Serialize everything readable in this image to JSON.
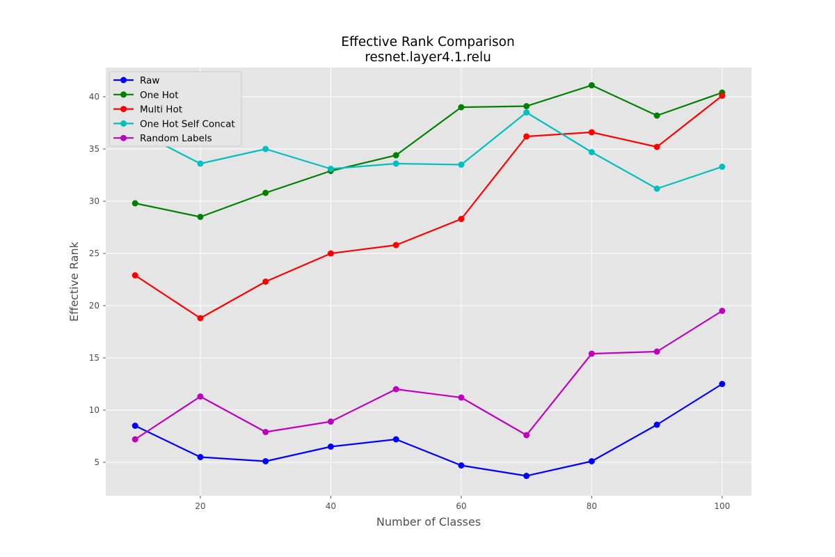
{
  "chart_data": {
    "type": "line",
    "title": "Effective Rank Comparison",
    "subtitle": "resnet.layer4.1.relu",
    "xlabel": "Number of Classes",
    "ylabel": "Effective Rank",
    "xlim": [
      5.5,
      104.5
    ],
    "ylim": [
      1.8,
      42.8
    ],
    "xticks": [
      20,
      40,
      60,
      80,
      100
    ],
    "yticks": [
      5,
      10,
      15,
      20,
      25,
      30,
      35,
      40
    ],
    "grid": true,
    "legend_position": "top-left",
    "x": [
      10,
      20,
      30,
      40,
      50,
      60,
      70,
      80,
      90,
      100
    ],
    "series": [
      {
        "name": "Raw",
        "color": "#0000ff",
        "values": [
          8.5,
          5.5,
          5.1,
          6.5,
          7.2,
          4.7,
          3.7,
          5.1,
          8.6,
          12.5
        ]
      },
      {
        "name": "One Hot",
        "color": "#008000",
        "values": [
          29.8,
          28.5,
          30.8,
          32.9,
          34.4,
          39.0,
          39.1,
          41.1,
          38.2,
          40.4
        ]
      },
      {
        "name": "Multi Hot",
        "color": "#ff0000",
        "values": [
          22.9,
          18.8,
          22.3,
          25.0,
          25.8,
          28.3,
          36.2,
          36.6,
          35.2,
          40.1
        ]
      },
      {
        "name": "One Hot Self Concat",
        "color": "#00bfbf",
        "values": [
          36.8,
          33.6,
          35.0,
          33.1,
          33.6,
          33.5,
          38.5,
          34.7,
          31.2,
          33.3
        ]
      },
      {
        "name": "Random Labels",
        "color": "#bf00bf",
        "values": [
          7.2,
          11.3,
          7.9,
          8.9,
          12.0,
          11.2,
          7.6,
          15.4,
          15.6,
          19.5
        ]
      }
    ]
  }
}
